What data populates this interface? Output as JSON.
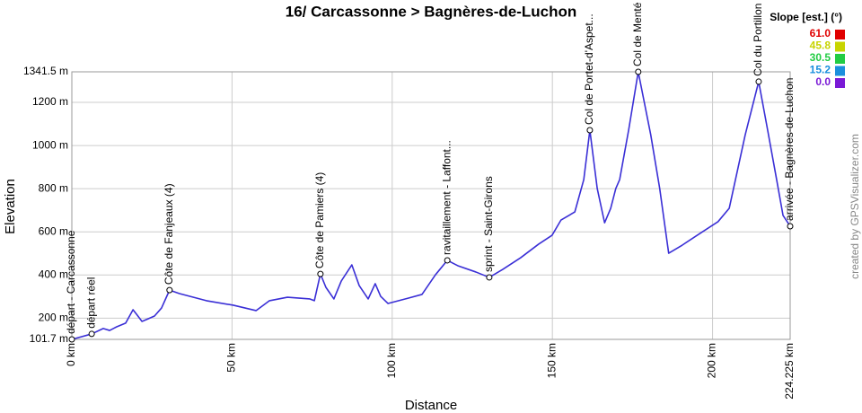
{
  "chart_data": {
    "type": "line",
    "title": "16/ Carcassonne > Bagnères-de-Luchon",
    "x_label": "Distance",
    "y_label": "Elevation",
    "credit": "created by GPSVisualizer.com",
    "grid": true,
    "xlim": [
      0,
      224.225
    ],
    "ylim": [
      101.7,
      1341.5
    ],
    "xticks": [
      {
        "value": 0,
        "label": "0 km"
      },
      {
        "value": 50,
        "label": "50 km"
      },
      {
        "value": 100,
        "label": "100 km"
      },
      {
        "value": 150,
        "label": "150 km"
      },
      {
        "value": 200,
        "label": "200 km"
      },
      {
        "value": 224.225,
        "label": "224.225 km"
      }
    ],
    "yticks": [
      {
        "value": 101.7,
        "label": "101.7 m"
      },
      {
        "value": 200,
        "label": "200 m"
      },
      {
        "value": 400,
        "label": "400 m"
      },
      {
        "value": 600,
        "label": "600 m"
      },
      {
        "value": 800,
        "label": "800 m"
      },
      {
        "value": 1000,
        "label": "1000 m"
      },
      {
        "value": 1200,
        "label": "1200 m"
      },
      {
        "value": 1341.5,
        "label": "1341.5 m"
      }
    ],
    "series": [
      {
        "color": "#3a2fd6",
        "x": [
          0,
          6.2,
          9.8,
          11.8,
          14.0,
          16.8,
          19.1,
          20.2,
          21.9,
          23.8,
          25.8,
          28.0,
          30.5,
          33.6,
          42.0,
          50.4,
          57.5,
          61.7,
          67.3,
          74.3,
          75.7,
          77.6,
          79.3,
          81.8,
          84.1,
          87.4,
          89.7,
          92.5,
          94.7,
          96.4,
          98.7,
          105.1,
          109.3,
          113.5,
          117.2,
          120.5,
          126.1,
          130.3,
          134.5,
          140.1,
          145.7,
          149.9,
          152.7,
          157.0,
          159.8,
          161.7,
          164.0,
          166.3,
          168.2,
          169.8,
          171.0,
          173.8,
          176.8,
          180.7,
          183.5,
          186.3,
          190.5,
          196.1,
          201.7,
          205.2,
          210.2,
          214.4,
          217.2,
          220.0,
          222.0,
          224.225
        ],
        "values": [
          101.7,
          127,
          152,
          143,
          160,
          177,
          239,
          218,
          185,
          197,
          210,
          247,
          330,
          314,
          281,
          260,
          235,
          281,
          297,
          289,
          281,
          405,
          343,
          289,
          372,
          447,
          351,
          289,
          360,
          301,
          268,
          293,
          310,
          401,
          468,
          443,
          414,
          389,
          426,
          480,
          543,
          584,
          655,
          692,
          842,
          1071,
          801,
          642,
          709,
          801,
          842,
          1071,
          1341.5,
          1050,
          801,
          501,
          538,
          593,
          647,
          709,
          1050,
          1296,
          1071,
          842,
          676,
          626
        ]
      }
    ],
    "waypoints": [
      {
        "name": "départ - Carcassonne",
        "km": 0,
        "elevation": 101.7
      },
      {
        "name": "départ réel",
        "km": 6.2,
        "elevation": 127
      },
      {
        "name": "Côte de Fanjeaux (4)",
        "km": 30.5,
        "elevation": 330
      },
      {
        "name": "Côte de Pamiers (4)",
        "km": 77.6,
        "elevation": 405
      },
      {
        "name": "ravitaillement - Laffont...",
        "km": 117.2,
        "elevation": 468
      },
      {
        "name": "sprint - Saint-Girons",
        "km": 130.3,
        "elevation": 389
      },
      {
        "name": "Col de Portet-d'Aspet...",
        "km": 161.7,
        "elevation": 1071
      },
      {
        "name": "Col de Menté",
        "km": 176.8,
        "elevation": 1341.5
      },
      {
        "name": "Col du Portillon",
        "km": 214.4,
        "elevation": 1296
      },
      {
        "name": "arrivée - Bagnères-de-Luchon",
        "km": 224.225,
        "elevation": 626
      }
    ],
    "slope_legend": {
      "title": "Slope [est.] (°)",
      "items": [
        {
          "label": "61.0",
          "color": "#e00000"
        },
        {
          "label": "45.8",
          "color": "#c8d400"
        },
        {
          "label": "30.5",
          "color": "#22cc44"
        },
        {
          "label": "15.2",
          "color": "#1a8fdd"
        },
        {
          "label": "0.0",
          "color": "#7a1ad6"
        }
      ]
    }
  }
}
